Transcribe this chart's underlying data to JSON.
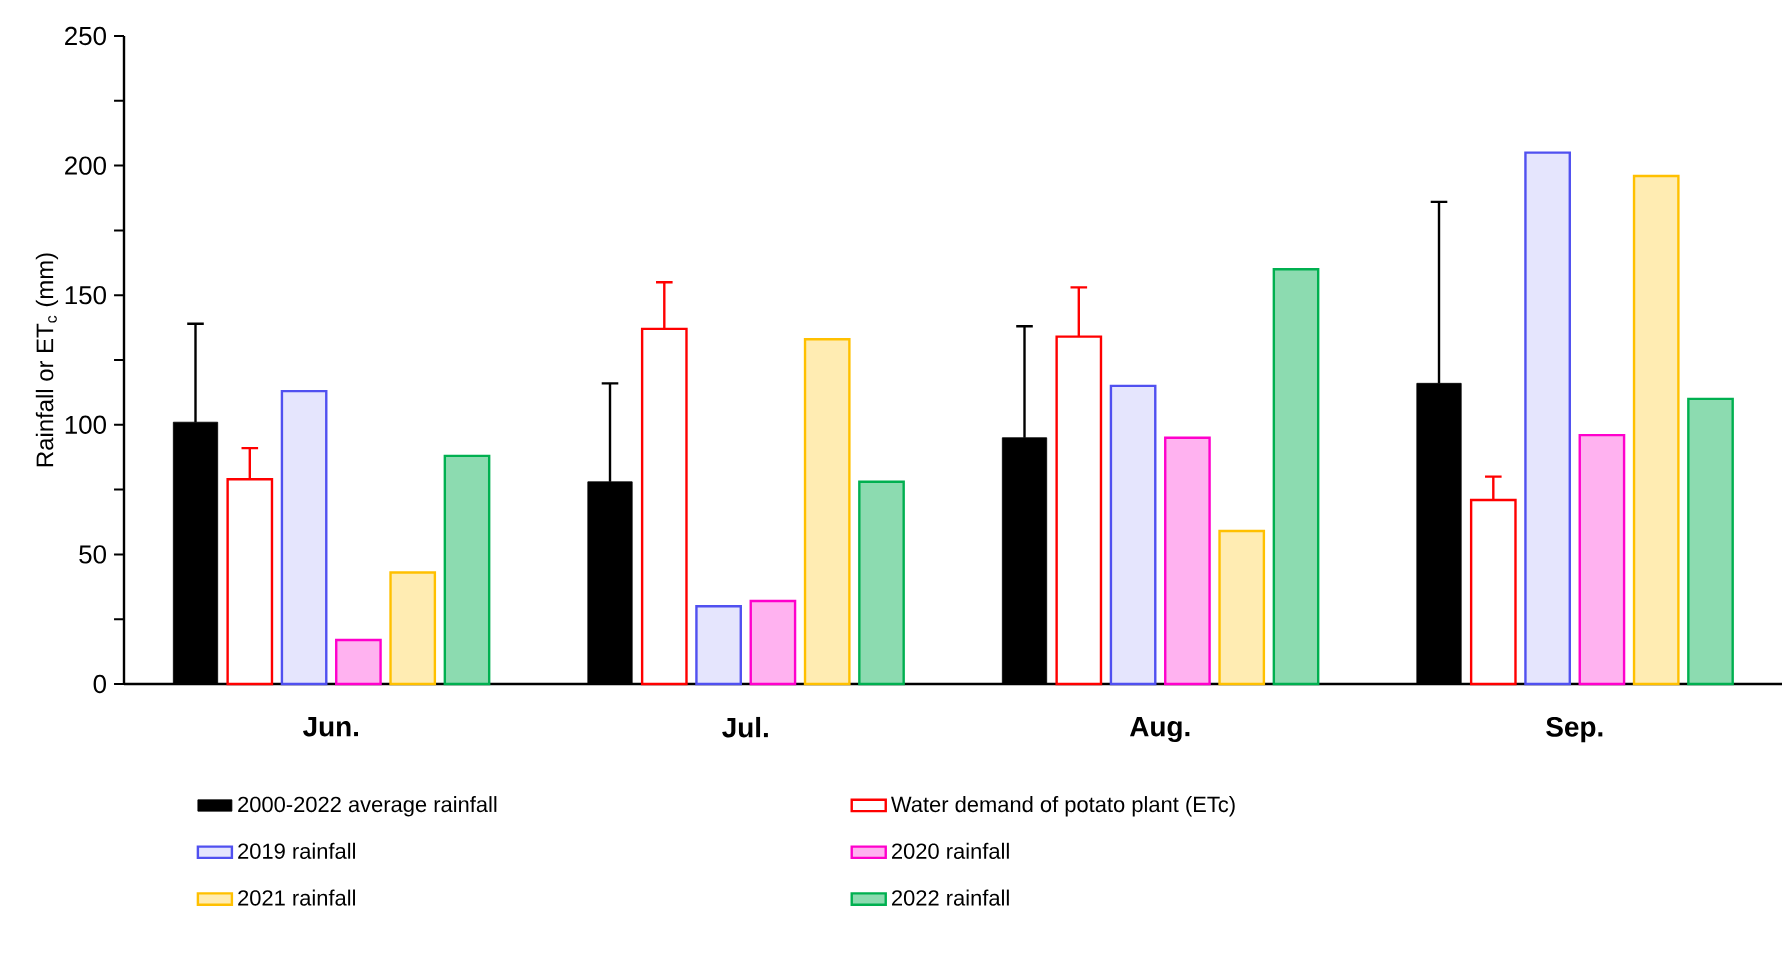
{
  "chart_data": {
    "type": "bar",
    "ylabel": "Rainfall or ET$_{c}$ (mm)",
    "categories": [
      "Jun.",
      "Jul.",
      "Aug.",
      "Sep."
    ],
    "series": [
      {
        "name": "2000-2022 average rainfall",
        "color": "#000000",
        "values": [
          101,
          78,
          95,
          116
        ],
        "errors": [
          [
            101,
            139
          ],
          [
            78,
            116
          ],
          [
            95,
            138
          ],
          [
            116,
            186
          ]
        ]
      },
      {
        "name": "Water demand of potato plant (ETc)",
        "color": "#ff0000",
        "values": [
          79,
          137,
          134,
          71
        ],
        "errors": [
          [
            79,
            91
          ],
          [
            137,
            155
          ],
          [
            134,
            153
          ],
          [
            71,
            80
          ]
        ]
      },
      {
        "name": "2019 rainfall",
        "color": "#5050f0",
        "values": [
          113,
          30,
          115,
          205
        ]
      },
      {
        "name": "2020 rainfall",
        "color": "#ff00cc",
        "values": [
          17,
          32,
          95,
          96
        ]
      },
      {
        "name": "2021 rainfall",
        "color": "#ffc000",
        "values": [
          43,
          133,
          59,
          196
        ]
      },
      {
        "name": "2022 rainfall",
        "color": "#00b050",
        "values": [
          88,
          78,
          160,
          110
        ]
      }
    ],
    "ylim": [
      0,
      250
    ],
    "yticks": [
      0,
      {
        "value": 25,
        "label": null
      },
      50,
      {
        "value": 75,
        "label": null
      },
      100,
      {
        "value": 125,
        "label": null
      },
      150,
      {
        "value": 175,
        "label": null
      },
      200,
      {
        "value": 225,
        "label": null
      },
      250
    ],
    "grid": false,
    "legend": "bottom"
  }
}
